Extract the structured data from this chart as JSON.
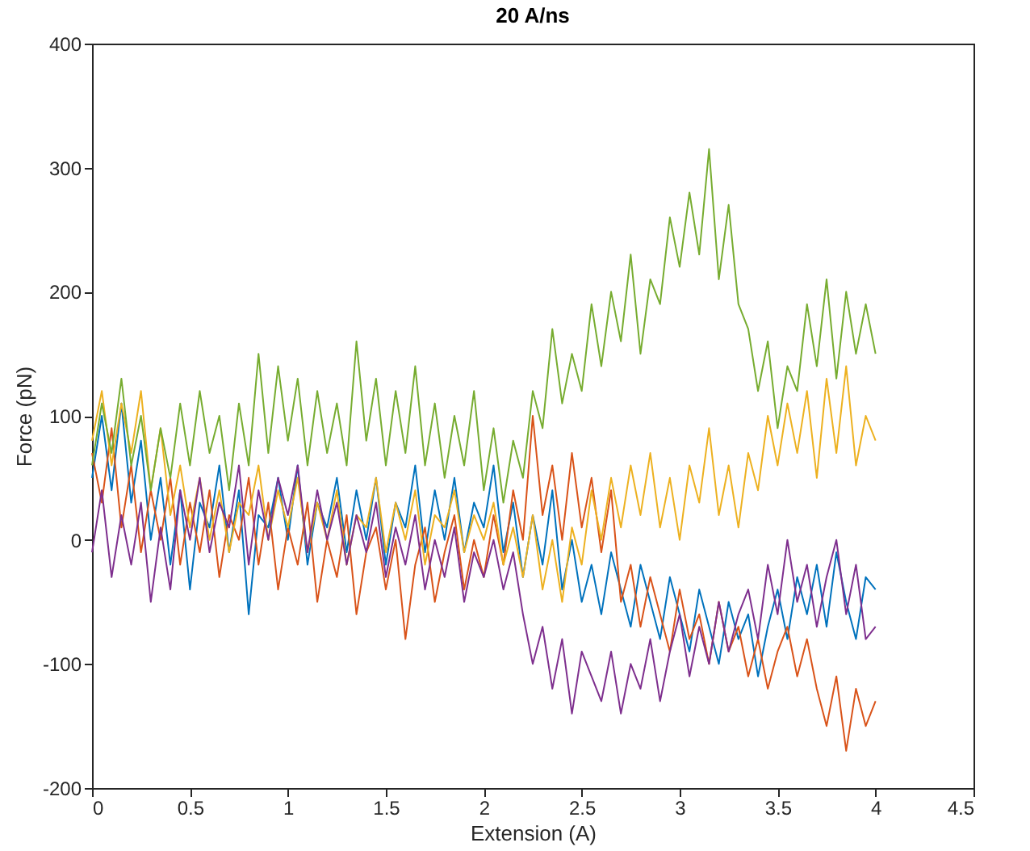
{
  "chart_data": {
    "type": "line",
    "title": "20 A/ns",
    "xlabel": "Extension (A)",
    "ylabel": "Force (pN)",
    "x": [
      0,
      0.05,
      0.1,
      0.15,
      0.2,
      0.25,
      0.3,
      0.35,
      0.4,
      0.45,
      0.5,
      0.55,
      0.6,
      0.65,
      0.7,
      0.75,
      0.8,
      0.85,
      0.9,
      0.95,
      1,
      1.05,
      1.1,
      1.15,
      1.2,
      1.25,
      1.3,
      1.35,
      1.4,
      1.45,
      1.5,
      1.55,
      1.6,
      1.65,
      1.7,
      1.75,
      1.8,
      1.85,
      1.9,
      1.95,
      2,
      2.05,
      2.1,
      2.15,
      2.2,
      2.25,
      2.3,
      2.35,
      2.4,
      2.45,
      2.5,
      2.55,
      2.6,
      2.65,
      2.7,
      2.75,
      2.8,
      2.85,
      2.9,
      2.95,
      3,
      3.05,
      3.1,
      3.15,
      3.2,
      3.25,
      3.3,
      3.35,
      3.4,
      3.45,
      3.5,
      3.55,
      3.6,
      3.65,
      3.7,
      3.75,
      3.8,
      3.85,
      3.9,
      3.95,
      4
    ],
    "series": [
      {
        "color": "#0072bd",
        "values": [
          50,
          100,
          40,
          110,
          30,
          80,
          0,
          50,
          -20,
          40,
          -40,
          30,
          10,
          60,
          -10,
          40,
          -60,
          20,
          10,
          50,
          0,
          60,
          -20,
          30,
          10,
          50,
          -10,
          40,
          0,
          50,
          -20,
          30,
          10,
          60,
          -10,
          40,
          0,
          50,
          -10,
          30,
          10,
          60,
          -10,
          30,
          -30,
          20,
          -20,
          40,
          -40,
          0,
          -50,
          -20,
          -60,
          -10,
          -40,
          -70,
          -20,
          -50,
          -80,
          -30,
          -60,
          -90,
          -40,
          -70,
          -100,
          -50,
          -80,
          -60,
          -110,
          -70,
          -40,
          -80,
          -30,
          -60,
          -20,
          -70,
          -10,
          -50,
          -80,
          -30,
          -40
        ]
      },
      {
        "color": "#d95319",
        "values": [
          70,
          30,
          90,
          10,
          60,
          -10,
          40,
          0,
          50,
          -20,
          30,
          -10,
          40,
          -30,
          20,
          0,
          50,
          -20,
          30,
          -40,
          10,
          -20,
          30,
          -50,
          0,
          -30,
          20,
          -60,
          -10,
          10,
          -40,
          0,
          -80,
          -20,
          10,
          -50,
          -10,
          20,
          -40,
          0,
          -30,
          20,
          -20,
          40,
          0,
          100,
          20,
          60,
          0,
          70,
          10,
          50,
          -10,
          40,
          -50,
          -20,
          -70,
          -30,
          -60,
          -90,
          -40,
          -80,
          -60,
          -100,
          -50,
          -90,
          -70,
          -110,
          -80,
          -120,
          -90,
          -70,
          -110,
          -80,
          -120,
          -150,
          -110,
          -170,
          -120,
          -150,
          -130
        ]
      },
      {
        "color": "#edb120",
        "values": [
          80,
          120,
          60,
          110,
          70,
          120,
          40,
          90,
          20,
          60,
          10,
          50,
          0,
          40,
          -10,
          30,
          20,
          60,
          0,
          40,
          10,
          50,
          -10,
          30,
          0,
          40,
          -20,
          20,
          10,
          50,
          -10,
          30,
          0,
          40,
          -20,
          20,
          10,
          40,
          -10,
          20,
          0,
          30,
          -20,
          10,
          -30,
          20,
          -40,
          0,
          -50,
          10,
          -20,
          40,
          0,
          50,
          10,
          60,
          20,
          70,
          10,
          50,
          0,
          60,
          30,
          90,
          20,
          60,
          10,
          70,
          40,
          100,
          60,
          110,
          70,
          120,
          50,
          130,
          70,
          140,
          60,
          100,
          80
        ]
      },
      {
        "color": "#7e2f8e",
        "values": [
          -10,
          40,
          -30,
          20,
          -20,
          30,
          -50,
          10,
          -40,
          40,
          0,
          50,
          -10,
          30,
          10,
          60,
          -20,
          40,
          0,
          50,
          20,
          60,
          -10,
          40,
          0,
          30,
          -20,
          20,
          -10,
          30,
          -30,
          10,
          -20,
          20,
          -40,
          0,
          -30,
          10,
          -50,
          -10,
          -30,
          0,
          -40,
          -10,
          -60,
          -100,
          -70,
          -120,
          -80,
          -140,
          -90,
          -110,
          -130,
          -90,
          -140,
          -100,
          -120,
          -80,
          -130,
          -90,
          -60,
          -110,
          -70,
          -100,
          -50,
          -90,
          -60,
          -40,
          -80,
          -20,
          -60,
          0,
          -50,
          -20,
          -70,
          -30,
          0,
          -60,
          -20,
          -80,
          -70
        ]
      },
      {
        "color": "#77ac30",
        "values": [
          60,
          110,
          70,
          130,
          60,
          100,
          40,
          90,
          50,
          110,
          60,
          120,
          70,
          100,
          40,
          110,
          60,
          150,
          70,
          140,
          80,
          130,
          60,
          120,
          70,
          110,
          60,
          160,
          80,
          130,
          60,
          120,
          70,
          140,
          60,
          110,
          50,
          100,
          60,
          120,
          40,
          90,
          30,
          80,
          50,
          120,
          90,
          170,
          110,
          150,
          120,
          190,
          140,
          200,
          160,
          230,
          150,
          210,
          190,
          260,
          220,
          280,
          230,
          315,
          210,
          270,
          190,
          170,
          120,
          160,
          90,
          140,
          120,
          190,
          140,
          210,
          130,
          200,
          150,
          190,
          150
        ]
      }
    ],
    "xlim": [
      0,
      4.5
    ],
    "xticks": [
      0,
      0.5,
      1,
      1.5,
      2,
      2.5,
      3,
      3.5,
      4,
      4.5
    ],
    "ylim": [
      -200,
      400
    ],
    "yticks": [
      -200,
      -100,
      0,
      100,
      200,
      300,
      400
    ],
    "grid": false,
    "line_style": "solid",
    "marker": "none"
  }
}
